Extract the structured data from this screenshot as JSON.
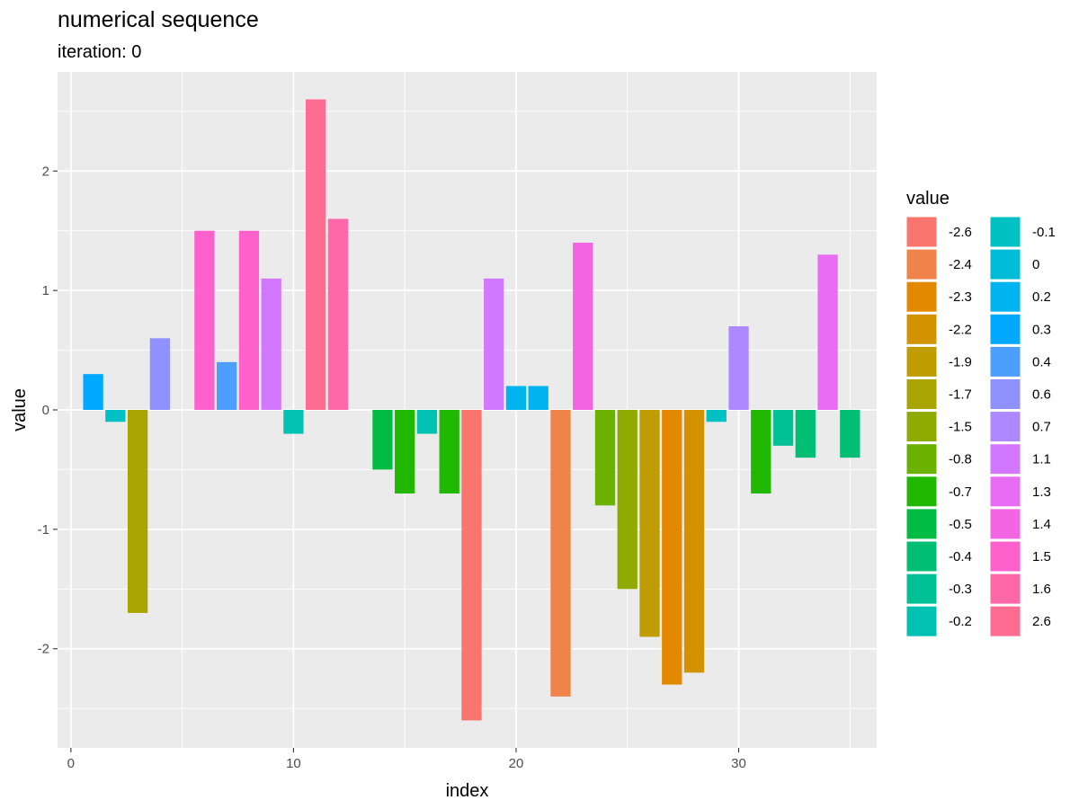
{
  "chart_data": {
    "type": "bar",
    "title": "numerical sequence",
    "subtitle": "iteration: 0",
    "xlabel": "index",
    "ylabel": "value",
    "xlim": [
      -0.6,
      36.2
    ],
    "ylim": [
      -2.83,
      2.83
    ],
    "x_ticks": [
      0,
      10,
      20,
      30
    ],
    "x_tick_labels": [
      "0",
      "10",
      "20",
      "30"
    ],
    "y_ticks": [
      -2,
      -1,
      0,
      1,
      2
    ],
    "y_tick_labels": [
      "-2",
      "-1",
      "0",
      "1",
      "2"
    ],
    "grid": true,
    "legend_placement": "right",
    "legend_title": "value",
    "x": [
      1,
      2,
      3,
      4,
      5,
      6,
      7,
      8,
      9,
      10,
      11,
      12,
      13,
      14,
      15,
      16,
      17,
      18,
      19,
      20,
      21,
      22,
      23,
      24,
      25,
      26,
      27,
      28,
      29,
      30,
      31,
      32,
      33,
      34,
      35
    ],
    "values": [
      0.3,
      -0.1,
      -1.7,
      0.6,
      0,
      1.5,
      0.4,
      1.5,
      1.1,
      -0.2,
      2.6,
      1.6,
      0,
      -0.5,
      -0.7,
      -0.2,
      -0.7,
      -2.6,
      1.1,
      0.2,
      0.2,
      -2.4,
      1.4,
      -0.8,
      -1.5,
      -1.9,
      -2.3,
      -2.2,
      -0.1,
      0.7,
      -0.7,
      -0.3,
      -0.4,
      1.3,
      -0.4
    ],
    "legend": [
      {
        "label": "-2.6",
        "color": "#F8766D"
      },
      {
        "label": "-2.4",
        "color": "#EF834A"
      },
      {
        "label": "-2.3",
        "color": "#E38900"
      },
      {
        "label": "-2.2",
        "color": "#D39200"
      },
      {
        "label": "-1.9",
        "color": "#BF9C00"
      },
      {
        "label": "-1.7",
        "color": "#A9A400"
      },
      {
        "label": "-1.5",
        "color": "#8FAA00"
      },
      {
        "label": "-0.8",
        "color": "#6BB100"
      },
      {
        "label": "-0.7",
        "color": "#20B800"
      },
      {
        "label": "-0.5",
        "color": "#00BC45"
      },
      {
        "label": "-0.4",
        "color": "#00BF74"
      },
      {
        "label": "-0.3",
        "color": "#00C095"
      },
      {
        "label": "-0.2",
        "color": "#00C1B2"
      },
      {
        "label": "-0.1",
        "color": "#00C0C3"
      },
      {
        "label": "0",
        "color": "#00BCD6"
      },
      {
        "label": "0.2",
        "color": "#00B4EF"
      },
      {
        "label": "0.3",
        "color": "#00A9FF"
      },
      {
        "label": "0.4",
        "color": "#4C9EFF"
      },
      {
        "label": "0.6",
        "color": "#8F91FF"
      },
      {
        "label": "0.7",
        "color": "#AD88FF"
      },
      {
        "label": "1.1",
        "color": "#D277FF"
      },
      {
        "label": "1.3",
        "color": "#E96CF5"
      },
      {
        "label": "1.4",
        "color": "#F465E3"
      },
      {
        "label": "1.5",
        "color": "#FF61CC"
      },
      {
        "label": "1.6",
        "color": "#FF68A8"
      },
      {
        "label": "2.6",
        "color": "#FF6C91"
      }
    ],
    "colors": {
      "panel_background": "#EBEBEB",
      "grid_line": "#FFFFFF"
    }
  }
}
